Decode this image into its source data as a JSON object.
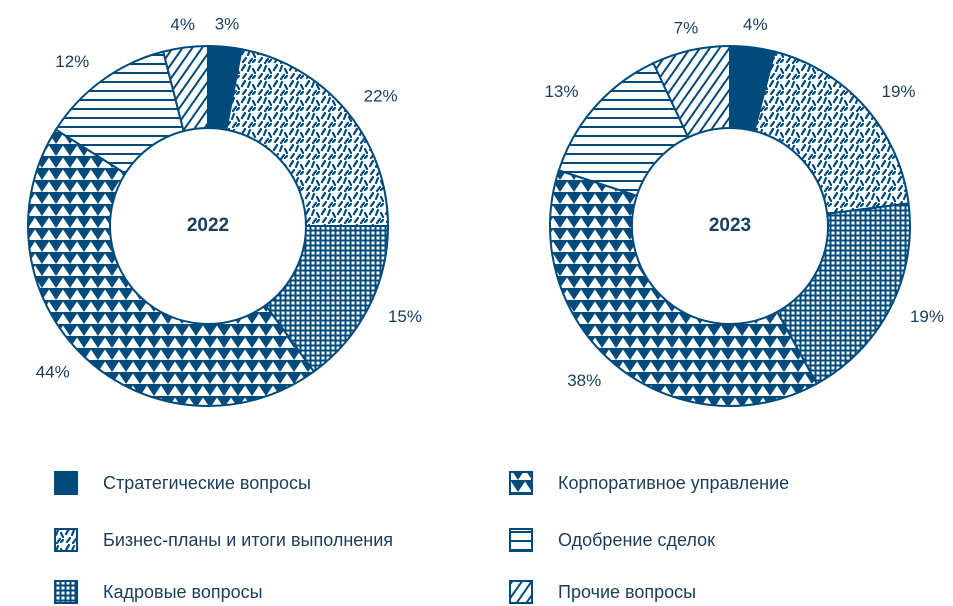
{
  "chart_data": [
    {
      "type": "pie",
      "title": "2022",
      "categories": [
        "Стратегические вопросы",
        "Бизнес-планы и итоги выполнения",
        "Кадровые вопросы",
        "Корпоративное управление",
        "Одобрение сделок",
        "Прочие вопросы"
      ],
      "values": [
        3,
        22,
        15,
        44,
        12,
        4
      ],
      "value_labels": [
        "3%",
        "22%",
        "15%",
        "44%",
        "12%",
        "4%"
      ],
      "patterns": [
        "solid",
        "dashes",
        "grid",
        "triangles",
        "horizontal",
        "diagonal"
      ],
      "color": "#004a7c"
    },
    {
      "type": "pie",
      "title": "2023",
      "categories": [
        "Стратегические вопросы",
        "Бизнес-планы и итоги выполнения",
        "Кадровые вопросы",
        "Корпоративное управление",
        "Одобрение сделок",
        "Прочие вопросы"
      ],
      "values": [
        4,
        19,
        19,
        38,
        13,
        7
      ],
      "value_labels": [
        "4%",
        "19%",
        "19%",
        "38%",
        "13%",
        "7%"
      ],
      "patterns": [
        "solid",
        "dashes",
        "grid",
        "triangles",
        "horizontal",
        "diagonal"
      ],
      "color": "#004a7c"
    }
  ]
}
